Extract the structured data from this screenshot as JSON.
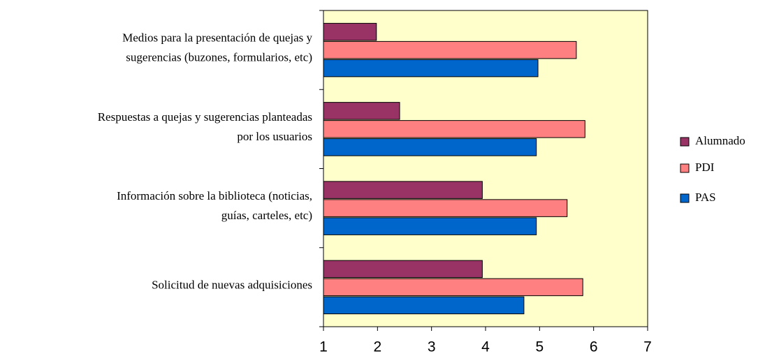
{
  "chart_data": {
    "type": "barh",
    "categories": [
      [
        "Medios para la presentación de quejas y",
        "sugerencias  (buzones, formularios, etc)"
      ],
      [
        "Respuestas a quejas y sugerencias planteadas",
        "por los usuarios"
      ],
      [
        "Información sobre la biblioteca (noticias,",
        "guías, carteles, etc)"
      ],
      [
        "Solicitud de nuevas adquisiciones"
      ]
    ],
    "series": [
      {
        "name": "Alumnado",
        "color": "#993366",
        "values": [
          1.98,
          2.41,
          3.94,
          3.94
        ]
      },
      {
        "name": "PDI",
        "color": "#ff8080",
        "values": [
          5.68,
          5.84,
          5.51,
          5.8
        ]
      },
      {
        "name": "PAS",
        "color": "#0066cc",
        "values": [
          4.97,
          4.94,
          4.94,
          4.71
        ]
      }
    ],
    "xlim": [
      1,
      7
    ],
    "xticks": [
      1,
      2,
      3,
      4,
      5,
      6,
      7
    ],
    "plot_background": "#ffffcc",
    "legend": "right"
  }
}
